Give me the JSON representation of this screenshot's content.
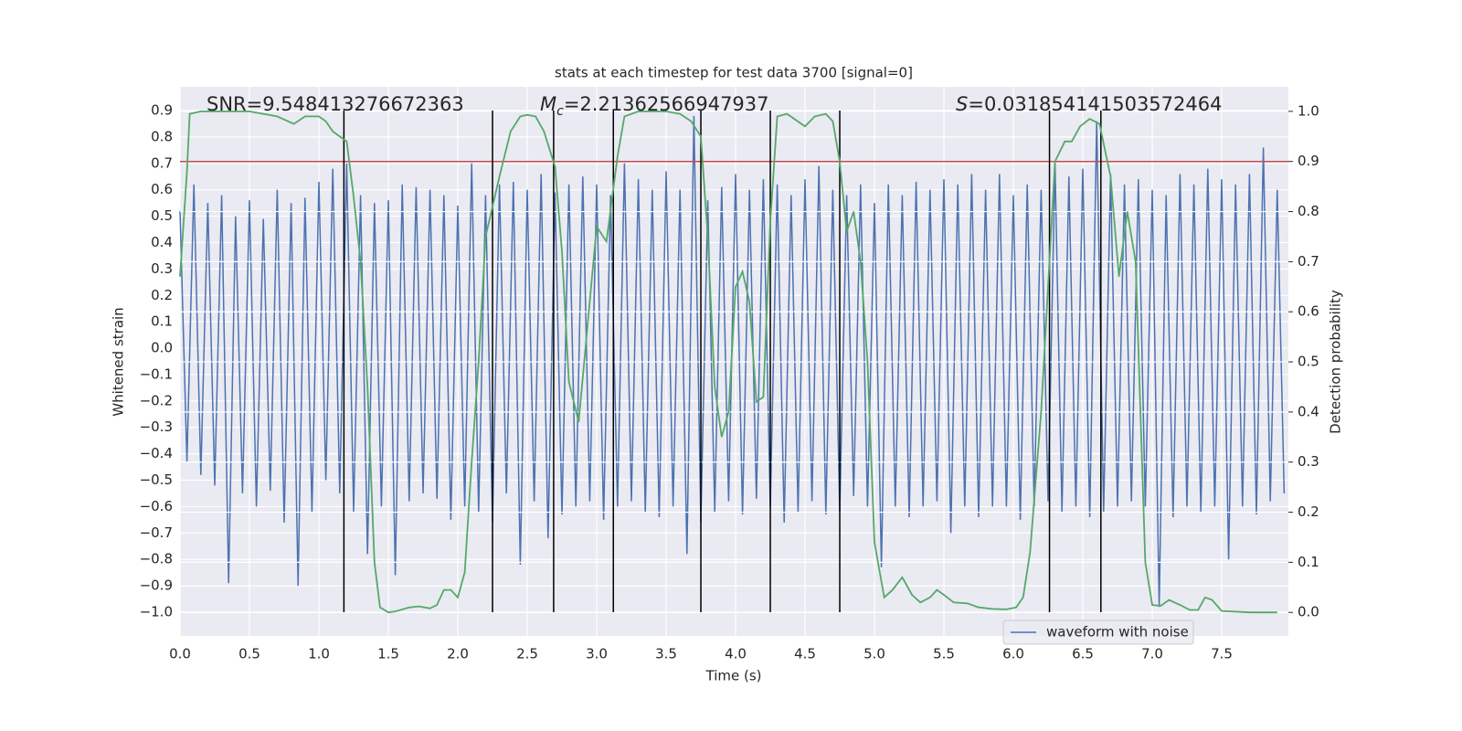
{
  "chart_data": {
    "type": "line",
    "title": "stats at each timestep for test data 3700 [signal=0]",
    "xlabel": "Time (s)",
    "ylabel": "Whitened strain",
    "y2label": "Detection probability",
    "xlim": [
      0,
      7.98
    ],
    "ylim": [
      -1.09,
      0.99
    ],
    "y2lim": [
      -0.047,
      1.049
    ],
    "grid": true,
    "legend": "lower right",
    "xticks": [
      {
        "value": 0,
        "label": "0.0"
      },
      0.5,
      {
        "value": 1,
        "label": "1.0"
      },
      1.5,
      {
        "value": 2,
        "label": "2.0"
      },
      2.5,
      {
        "value": 3,
        "label": "3.0"
      },
      3.5,
      {
        "value": 4,
        "label": "4.0"
      },
      4.5,
      {
        "value": 5,
        "label": "5.0"
      },
      5.5,
      {
        "value": 6,
        "label": "6.0"
      },
      6.5,
      {
        "value": 7,
        "label": "7.0"
      },
      7.5
    ],
    "yticks": [
      {
        "value": -1.0,
        "label": "−1.0"
      },
      {
        "value": -0.9,
        "label": "−0.9"
      },
      {
        "value": -0.8,
        "label": "−0.8"
      },
      {
        "value": -0.7,
        "label": "−0.7"
      },
      {
        "value": -0.6,
        "label": "−0.6"
      },
      {
        "value": -0.5,
        "label": "−0.5"
      },
      {
        "value": -0.4,
        "label": "−0.4"
      },
      {
        "value": -0.3,
        "label": "−0.3"
      },
      {
        "value": -0.2,
        "label": "−0.2"
      },
      {
        "value": -0.1,
        "label": "−0.1"
      },
      {
        "value": 0,
        "label": "0.0"
      },
      0.1,
      0.2,
      0.3,
      0.4,
      0.5,
      0.6,
      0.7,
      0.8,
      0.9
    ],
    "y2ticks": [
      {
        "value": 0,
        "label": "0.0"
      },
      0.1,
      0.2,
      0.3,
      0.4,
      0.5,
      0.6,
      0.7,
      0.8,
      0.9,
      {
        "value": 1,
        "label": "1.0"
      }
    ],
    "annotations": [
      {
        "text": "SNR=9.548413276672363"
      },
      {
        "symbol": "M",
        "subscript": "c",
        "text": "=2.21362566947937"
      },
      {
        "symbol": "S",
        "text": "=0.031854141503572464"
      }
    ],
    "threshold": {
      "value": 0.9,
      "axis": "y2",
      "color": "#c44e52"
    },
    "vlines": {
      "x": [
        1.18,
        2.25,
        2.69,
        3.12,
        3.75,
        4.25,
        4.75,
        6.26,
        6.63
      ],
      "range": [
        -1.0,
        0.9
      ],
      "color": "#000000"
    },
    "series": [
      {
        "name": "waveform with noise",
        "color": "#4c72b0",
        "x": [
          0,
          0.05,
          0.1,
          0.15,
          0.2,
          0.25,
          0.3,
          0.35,
          0.4,
          0.45,
          0.5,
          0.55,
          0.6,
          0.65,
          0.7,
          0.75,
          0.8,
          0.85,
          0.9,
          0.95,
          1,
          1.05,
          1.1,
          1.15,
          1.2,
          1.25,
          1.3,
          1.35,
          1.4,
          1.45,
          1.5,
          1.55,
          1.6,
          1.65,
          1.7,
          1.75,
          1.8,
          1.85,
          1.9,
          1.95,
          2,
          2.05,
          2.1,
          2.15,
          2.2,
          2.25,
          2.3,
          2.35,
          2.4,
          2.45,
          2.5,
          2.55,
          2.6,
          2.65,
          2.7,
          2.75,
          2.8,
          2.85,
          2.9,
          2.95,
          3,
          3.05,
          3.1,
          3.15,
          3.2,
          3.25,
          3.3,
          3.35,
          3.4,
          3.45,
          3.5,
          3.55,
          3.6,
          3.65,
          3.7,
          3.75,
          3.8,
          3.85,
          3.9,
          3.95,
          4,
          4.05,
          4.1,
          4.15,
          4.2,
          4.25,
          4.3,
          4.35,
          4.4,
          4.45,
          4.5,
          4.55,
          4.6,
          4.65,
          4.7,
          4.75,
          4.8,
          4.85,
          4.9,
          4.95,
          5,
          5.05,
          5.1,
          5.15,
          5.2,
          5.25,
          5.3,
          5.35,
          5.4,
          5.45,
          5.5,
          5.55,
          5.6,
          5.65,
          5.7,
          5.75,
          5.8,
          5.85,
          5.9,
          5.95,
          6,
          6.05,
          6.1,
          6.15,
          6.2,
          6.25,
          6.3,
          6.35,
          6.4,
          6.45,
          6.5,
          6.55,
          6.6,
          6.65,
          6.7,
          6.75,
          6.8,
          6.85,
          6.9,
          6.95,
          7,
          7.05,
          7.1,
          7.15,
          7.2,
          7.25,
          7.3,
          7.35,
          7.4,
          7.45,
          7.5,
          7.55,
          7.6,
          7.65,
          7.7,
          7.75,
          7.8,
          7.85,
          7.9,
          7.95
        ],
        "values": [
          0.52,
          -0.43,
          0.62,
          -0.48,
          0.55,
          -0.52,
          0.58,
          -0.89,
          0.5,
          -0.55,
          0.56,
          -0.6,
          0.49,
          -0.54,
          0.6,
          -0.66,
          0.55,
          -0.9,
          0.57,
          -0.62,
          0.63,
          -0.5,
          0.68,
          -0.55,
          0.7,
          -0.62,
          0.58,
          -0.78,
          0.55,
          -0.6,
          0.56,
          -0.86,
          0.62,
          -0.58,
          0.61,
          -0.55,
          0.6,
          -0.57,
          0.58,
          -0.65,
          0.54,
          -0.6,
          0.7,
          -0.62,
          0.58,
          -0.66,
          0.62,
          -0.55,
          0.63,
          -0.82,
          0.6,
          -0.58,
          0.66,
          -0.72,
          0.59,
          -0.63,
          0.62,
          -0.6,
          0.65,
          -0.58,
          0.62,
          -0.65,
          0.58,
          -0.6,
          0.7,
          -0.58,
          0.64,
          -0.62,
          0.6,
          -0.64,
          0.67,
          -0.6,
          0.6,
          -0.78,
          0.88,
          -0.66,
          0.56,
          -0.62,
          0.61,
          -0.58,
          0.66,
          -0.63,
          0.6,
          -0.57,
          0.64,
          -0.6,
          0.62,
          -0.66,
          0.58,
          -0.62,
          0.64,
          -0.58,
          0.69,
          -0.63,
          0.6,
          -0.62,
          0.58,
          -0.56,
          0.62,
          -0.6,
          0.55,
          -0.83,
          0.62,
          -0.6,
          0.58,
          -0.64,
          0.63,
          -0.6,
          0.6,
          -0.58,
          0.64,
          -0.7,
          0.62,
          -0.6,
          0.66,
          -0.64,
          0.6,
          -0.6,
          0.66,
          -0.6,
          0.58,
          -0.65,
          0.62,
          -0.6,
          0.6,
          -0.58,
          0.7,
          -0.62,
          0.65,
          -0.6,
          0.68,
          -0.64,
          0.86,
          -0.62,
          0.66,
          -0.6,
          0.62,
          -0.58,
          0.64,
          -0.6,
          0.6,
          -0.98,
          0.58,
          -0.64,
          0.66,
          -0.6,
          0.62,
          -0.62,
          0.68,
          -0.6,
          0.64,
          -0.8,
          0.62,
          -0.6,
          0.66,
          -0.63,
          0.76,
          -0.58,
          0.6,
          -0.55
        ]
      },
      {
        "color": "#55a868",
        "axis": "y2",
        "x": [
          0,
          0.05,
          0.07,
          0.15,
          0.3,
          0.5,
          0.7,
          0.82,
          0.9,
          1.0,
          1.05,
          1.1,
          1.2,
          1.25,
          1.3,
          1.35,
          1.4,
          1.44,
          1.5,
          1.55,
          1.65,
          1.72,
          1.8,
          1.85,
          1.9,
          1.95,
          2.0,
          2.05,
          2.1,
          2.15,
          2.2,
          2.3,
          2.38,
          2.45,
          2.5,
          2.56,
          2.62,
          2.7,
          2.75,
          2.8,
          2.87,
          2.95,
          3.0,
          3.07,
          3.15,
          3.2,
          3.3,
          3.5,
          3.6,
          3.68,
          3.75,
          3.8,
          3.85,
          3.9,
          3.95,
          4.0,
          4.05,
          4.1,
          4.15,
          4.2,
          4.25,
          4.3,
          4.37,
          4.5,
          4.57,
          4.65,
          4.7,
          4.75,
          4.8,
          4.85,
          4.9,
          4.95,
          5.0,
          5.07,
          5.13,
          5.2,
          5.27,
          5.33,
          5.4,
          5.45,
          5.5,
          5.57,
          5.67,
          5.75,
          5.85,
          5.95,
          6.02,
          6.07,
          6.12,
          6.2,
          6.3,
          6.37,
          6.42,
          6.48,
          6.55,
          6.62,
          6.7,
          6.76,
          6.82,
          6.88,
          6.95,
          7.0,
          7.06,
          7.12,
          7.2,
          7.27,
          7.33,
          7.38,
          7.43,
          7.5,
          7.7,
          7.9
        ],
        "values": [
          0.67,
          0.88,
          0.995,
          1.0,
          1.0,
          1.0,
          0.99,
          0.975,
          0.99,
          0.99,
          0.98,
          0.96,
          0.94,
          0.83,
          0.7,
          0.45,
          0.1,
          0.01,
          0.0,
          0.002,
          0.01,
          0.012,
          0.008,
          0.015,
          0.045,
          0.045,
          0.03,
          0.08,
          0.3,
          0.5,
          0.75,
          0.87,
          0.96,
          0.99,
          0.993,
          0.99,
          0.96,
          0.89,
          0.72,
          0.46,
          0.38,
          0.62,
          0.77,
          0.74,
          0.91,
          0.99,
          1.0,
          1.0,
          0.995,
          0.98,
          0.95,
          0.75,
          0.45,
          0.35,
          0.4,
          0.65,
          0.68,
          0.62,
          0.42,
          0.43,
          0.78,
          0.99,
          0.995,
          0.97,
          0.99,
          0.995,
          0.98,
          0.9,
          0.76,
          0.8,
          0.7,
          0.5,
          0.14,
          0.03,
          0.045,
          0.07,
          0.035,
          0.02,
          0.03,
          0.045,
          0.035,
          0.02,
          0.018,
          0.01,
          0.007,
          0.006,
          0.01,
          0.03,
          0.12,
          0.4,
          0.9,
          0.94,
          0.94,
          0.97,
          0.985,
          0.975,
          0.87,
          0.67,
          0.8,
          0.7,
          0.1,
          0.015,
          0.013,
          0.025,
          0.015,
          0.005,
          0.005,
          0.03,
          0.025,
          0.003,
          0.0,
          0.0
        ]
      }
    ]
  }
}
